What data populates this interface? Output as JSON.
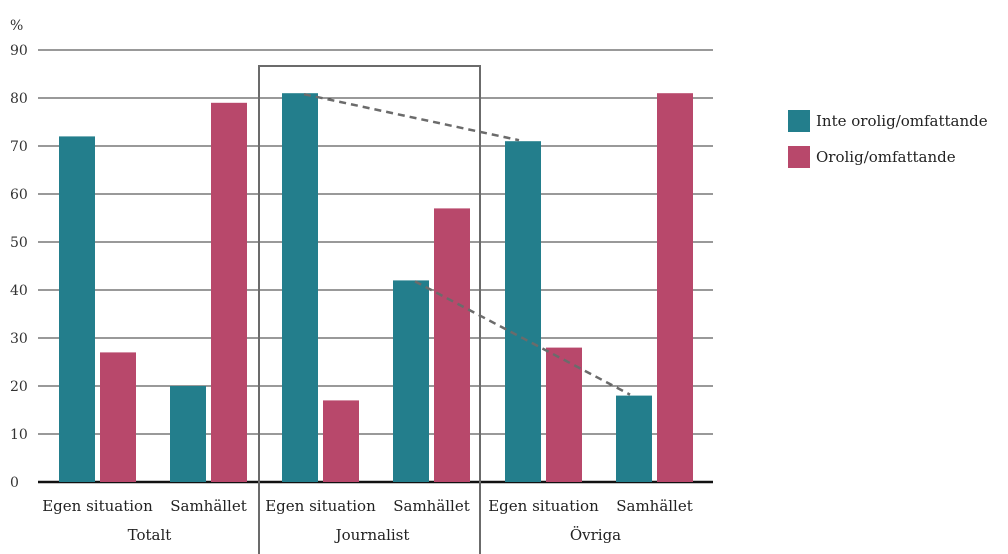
{
  "chart_data": {
    "type": "bar",
    "ylabel": "%",
    "ylim": [
      0,
      90
    ],
    "yticks": [
      0,
      10,
      20,
      30,
      40,
      50,
      60,
      70,
      80,
      90
    ],
    "grid": true,
    "legend_position": "right",
    "groups": [
      {
        "label": "Totalt",
        "categories": [
          {
            "label": "Egen situation",
            "values": [
              72,
              27
            ]
          },
          {
            "label": "Samhället",
            "values": [
              20,
              79
            ]
          }
        ]
      },
      {
        "label": "Journalist",
        "highlighted": true,
        "categories": [
          {
            "label": "Egen situation",
            "values": [
              81,
              17
            ]
          },
          {
            "label": "Samhället",
            "values": [
              42,
              57
            ]
          }
        ]
      },
      {
        "label": "Övriga",
        "categories": [
          {
            "label": "Egen situation",
            "values": [
              71,
              28
            ]
          },
          {
            "label": "Samhället",
            "values": [
              18,
              81
            ]
          }
        ]
      }
    ],
    "series": [
      {
        "name": "Inte orolig/omfattande",
        "color": "#237E8C"
      },
      {
        "name": "Orolig/omfattande",
        "color": "#B8486B"
      }
    ],
    "annotations": [
      {
        "type": "dashed-line",
        "from": {
          "group": 1,
          "category": 0,
          "series": 0
        },
        "to": {
          "group": 2,
          "category": 0,
          "series": 0
        }
      },
      {
        "type": "dashed-line",
        "from": {
          "group": 1,
          "category": 1,
          "series": 0
        },
        "to": {
          "group": 2,
          "category": 1,
          "series": 0
        }
      }
    ]
  }
}
